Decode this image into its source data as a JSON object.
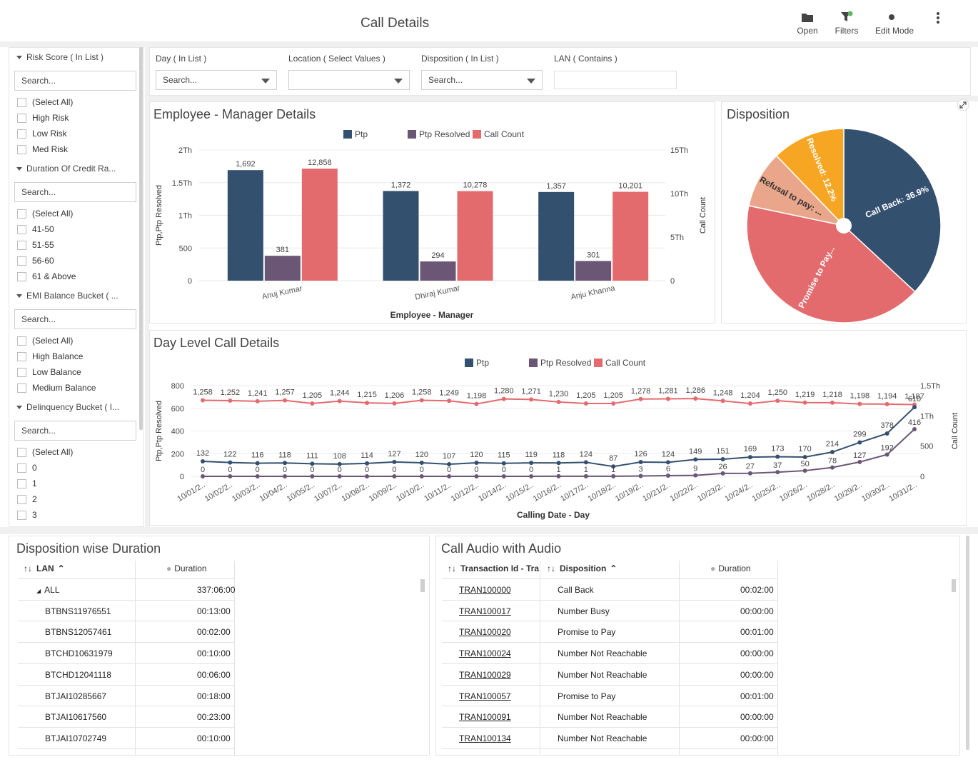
{
  "header": {
    "title": "Call Details",
    "open_label": "Open",
    "filters_label": "Filters",
    "edit_mode_label": "Edit Mode"
  },
  "colors": {
    "ptp": "#34506f",
    "ptp_resolved": "#6b5676",
    "call_count": "#e36b6e",
    "pie_resolved": "#f6a623",
    "pie_refusal": "#e9a68a",
    "pie_promise": "#e36b6e",
    "pie_callback": "#34506f"
  },
  "left_filters": [
    {
      "title": "Risk Score ( In List )",
      "search": "Search...",
      "items": [
        "(Select All)",
        "High Risk",
        "Low Risk",
        "Med Risk"
      ]
    },
    {
      "title": "Duration Of Credit Ra...",
      "search": "Search...",
      "items": [
        "(Select All)",
        "41-50",
        "51-55",
        "56-60",
        "61 & Above"
      ]
    },
    {
      "title": "EMI Balance Bucket ( ...",
      "search": "Search...",
      "items": [
        "(Select All)",
        "High Balance",
        "Low Balance",
        "Medium Balance"
      ]
    },
    {
      "title": "Delinquency Bucket ( I...",
      "search": "Search...",
      "items": [
        "(Select All)",
        "0",
        "1",
        "2",
        "3"
      ]
    }
  ],
  "top_filters": {
    "day": {
      "label": "Day ( In List )",
      "value": "Search..."
    },
    "location": {
      "label": "Location ( Select Values )",
      "value": ""
    },
    "disposition": {
      "label": "Disposition ( In List )",
      "value": "Search..."
    },
    "lan": {
      "label": "LAN ( Contains )",
      "value": ""
    }
  },
  "employee_chart": {
    "panel_title": "Employee - Manager Details",
    "chart_data": {
      "type": "bar",
      "xlabel": "Employee - Manager",
      "ylabel": "Ptp,Ptp Resolved",
      "y2label": "Call Count",
      "categories": [
        "Anuj Kumar",
        "Dhiraj Kumar",
        "Anju Khanna"
      ],
      "series": [
        {
          "name": "Ptp",
          "axis": "left",
          "values": [
            1692,
            1372,
            1357
          ]
        },
        {
          "name": "Ptp Resolved",
          "axis": "left",
          "values": [
            381,
            294,
            301
          ]
        },
        {
          "name": "Call Count",
          "axis": "right",
          "values": [
            12858,
            10278,
            10201
          ]
        }
      ],
      "value_labels": {
        "Ptp": [
          "1,692",
          "1,372",
          "1,357"
        ],
        "Ptp Resolved": [
          "381",
          "294",
          "301"
        ],
        "Call Count": [
          "12,858",
          "10,278",
          "10,201"
        ]
      },
      "ylim": [
        0,
        2000
      ],
      "y2lim": [
        0,
        15000
      ],
      "yticks": [
        "0",
        "500",
        "1Th",
        "1.5Th",
        "2Th"
      ],
      "y2ticks": [
        "0",
        "5Th",
        "10Th",
        "15Th"
      ],
      "legend": [
        "Ptp",
        "Ptp Resolved",
        "Call Count"
      ]
    }
  },
  "disposition_chart": {
    "panel_title": "Disposition",
    "chart_data": {
      "type": "pie",
      "slices": [
        {
          "label": "Call Back: 36.9%",
          "value": 36.9
        },
        {
          "label": "Promise to Pay...",
          "value": 41.4
        },
        {
          "label": "Refusal to pay: ...",
          "value": 9.5
        },
        {
          "label": "Resolved: 12.2%",
          "value": 12.2
        }
      ]
    }
  },
  "day_chart": {
    "panel_title": "Day Level Call Details",
    "chart_data": {
      "type": "line",
      "xlabel": "Calling Date - Day",
      "ylabel": "Ptp,Ptp Resolved",
      "y2label": "Call Count",
      "x": [
        "10/01/2..",
        "10/02/2..",
        "10/03/2..",
        "10/04/2..",
        "10/05/2..",
        "10/07/2..",
        "10/08/2..",
        "10/09/2..",
        "10/10/2..",
        "10/11/2..",
        "10/12/2..",
        "10/14/2..",
        "10/15/2..",
        "10/16/2..",
        "10/17/2..",
        "10/18/2..",
        "10/19/2..",
        "10/21/2..",
        "10/22/2..",
        "10/23/2..",
        "10/24/2..",
        "10/25/2..",
        "10/26/2..",
        "10/28/2..",
        "10/29/2..",
        "10/30/2..",
        "10/31/2.."
      ],
      "series": [
        {
          "name": "Ptp",
          "axis": "left",
          "values": [
            132,
            122,
            116,
            118,
            111,
            108,
            114,
            127,
            120,
            107,
            120,
            115,
            119,
            118,
            124,
            87,
            126,
            124,
            149,
            151,
            169,
            173,
            170,
            214,
            299,
            378,
            610
          ]
        },
        {
          "name": "Ptp Resolved",
          "axis": "left",
          "values": [
            0,
            0,
            0,
            0,
            0,
            0,
            0,
            0,
            0,
            0,
            0,
            0,
            0,
            1,
            1,
            1,
            3,
            6,
            9,
            26,
            27,
            37,
            50,
            78,
            127,
            192,
            416
          ]
        },
        {
          "name": "Call Count",
          "axis": "right",
          "values": [
            1258,
            1252,
            1241,
            1257,
            1205,
            1244,
            1215,
            1206,
            1258,
            1249,
            1198,
            1280,
            1271,
            1230,
            1205,
            1205,
            1278,
            1281,
            1286,
            1248,
            1204,
            1250,
            1219,
            1218,
            1198,
            1194,
            1187
          ]
        }
      ],
      "value_labels": {
        "Ptp": [
          "132",
          "122",
          "116",
          "118",
          "111",
          "108",
          "114",
          "127",
          "120",
          "107",
          "120",
          "115",
          "119",
          "118",
          "124",
          "87",
          "126",
          "124",
          "149",
          "151",
          "169",
          "173",
          "170",
          "214",
          "299",
          "378",
          "610"
        ],
        "Ptp Resolved": [
          "0",
          "0",
          "0",
          "0",
          "0",
          "0",
          "0",
          "0",
          "0",
          "0",
          "0",
          "0",
          "0",
          "1",
          "1",
          "1",
          "3",
          "6",
          "9",
          "26",
          "27",
          "37",
          "50",
          "78",
          "127",
          "192",
          "416"
        ],
        "Call Count": [
          "1,258",
          "1,252",
          "1,241",
          "1,257",
          "1,205",
          "1,244",
          "1,215",
          "1,206",
          "1,258",
          "1,249",
          "1,198",
          "1,280",
          "1,271",
          "1,230",
          "1,205",
          "1,205",
          "1,278",
          "1,281",
          "1,286",
          "1,248",
          "1,204",
          "1,250",
          "1,219",
          "1,218",
          "1,198",
          "1,194",
          "1,187"
        ]
      },
      "ylim": [
        0,
        800
      ],
      "y2lim": [
        0,
        1500
      ],
      "yticks": [
        "0",
        "200",
        "400",
        "600",
        "800"
      ],
      "y2ticks": [
        "0",
        "500",
        "1Th",
        "1.5Th"
      ],
      "legend": [
        "Ptp",
        "Ptp Resolved",
        "Call Count"
      ]
    }
  },
  "duration_table": {
    "panel_title": "Disposition wise Duration",
    "col_lan": "LAN",
    "col_duration": "Duration",
    "all_label": "ALL",
    "all_value": "337:06:00",
    "rows": [
      {
        "lan": "BTBNS11976551",
        "duration": "00:13:00"
      },
      {
        "lan": "BTBNS12057461",
        "duration": "00:02:00"
      },
      {
        "lan": "BTCHD10631979",
        "duration": "00:10:00"
      },
      {
        "lan": "BTCHD12041118",
        "duration": "00:06:00"
      },
      {
        "lan": "BTJAI10285667",
        "duration": "00:18:00"
      },
      {
        "lan": "BTJAI10617560",
        "duration": "00:23:00"
      },
      {
        "lan": "BTJAI10702749",
        "duration": "00:10:00"
      }
    ]
  },
  "audio_table": {
    "panel_title": "Call Audio with Audio",
    "col_txn": "Transaction Id - Tra",
    "col_disp": "Disposition",
    "col_duration": "Duration",
    "rows": [
      {
        "txn": "TRAN100000",
        "disp": "Call Back",
        "duration": "00:02:00"
      },
      {
        "txn": "TRAN100017",
        "disp": "Number Busy",
        "duration": "00:00:00"
      },
      {
        "txn": "TRAN100020",
        "disp": "Promise to Pay",
        "duration": "00:01:00"
      },
      {
        "txn": "TRAN100024",
        "disp": "Number Not Reachable",
        "duration": "00:00:00"
      },
      {
        "txn": "TRAN100029",
        "disp": "Number Not Reachable",
        "duration": "00:00:00"
      },
      {
        "txn": "TRAN100057",
        "disp": "Promise to Pay",
        "duration": "00:01:00"
      },
      {
        "txn": "TRAN100091",
        "disp": "Number Not Reachable",
        "duration": "00:00:00"
      },
      {
        "txn": "TRAN100134",
        "disp": "Number Not Reachable",
        "duration": "00:00:00"
      }
    ]
  }
}
